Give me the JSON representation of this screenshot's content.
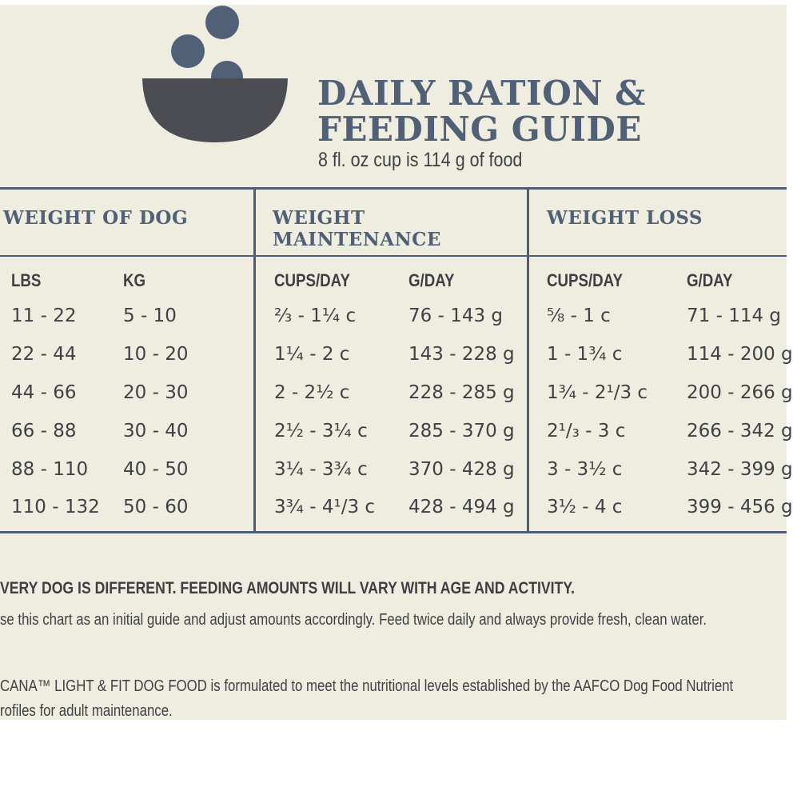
{
  "colors": {
    "background": "#efeddf",
    "title": "#4f6077",
    "rule": "#4e5d72",
    "text": "#3f4147",
    "bowl": "#4b4d53",
    "kibble": "#4f6077"
  },
  "logo": {
    "icon": "bowl-with-kibble-icon"
  },
  "title": {
    "line1": "DAILY RATION &",
    "line2": "FEEDING GUIDE"
  },
  "subtitle": "8 fl. oz cup is 114 g of food",
  "table": {
    "groups": {
      "weight_of_dog": "WEIGHT OF DOG",
      "maintenance_line1": "WEIGHT",
      "maintenance_line2": "MAINTENANCE",
      "weight_loss": "WEIGHT LOSS"
    },
    "columns": [
      "LBS",
      "KG",
      "CUPS/DAY",
      "G/DAY",
      "CUPS/DAY",
      "G/DAY"
    ],
    "rows": [
      [
        "11 - 22",
        "5 - 10",
        "²⁄₃ - 1¼ c",
        "76 - 143 g",
        "⁵⁄₈ - 1 c",
        "71 - 114 g"
      ],
      [
        "22 - 44",
        "10 - 20",
        "1¼ - 2 c",
        "143 - 228 g",
        "1 - 1¾ c",
        "114 - 200 g"
      ],
      [
        "44 - 66",
        "20 - 30",
        "2 - 2½ c",
        "228 - 285 g",
        "1¾ - 2¹/3 c",
        "200 - 266 g"
      ],
      [
        "66 - 88",
        "30 - 40",
        "2½ - 3¼ c",
        "285 - 370 g",
        "2¹/₃ - 3 c",
        "266 - 342 g"
      ],
      [
        "88 - 110",
        "40 - 50",
        "3¼ - 3¾ c",
        "370 - 428 g",
        "3 - 3½ c",
        "342 - 399 g"
      ],
      [
        "110 - 132",
        "50 - 60",
        "3¾ - 4¹/3 c",
        "428 - 494 g",
        "3½ - 4 c",
        "399 - 456 g"
      ]
    ]
  },
  "notes": {
    "headline": "VERY DOG IS DIFFERENT. FEEDING AMOUNTS WILL VARY WITH AGE AND ACTIVITY.",
    "line1": "se this chart as an initial guide and adjust amounts accordingly. Feed twice daily and always provide fresh, clean water.",
    "line2": "CANA™ LIGHT & FIT DOG FOOD is formulated to meet the nutritional levels established by the AAFCO Dog Food Nutrient",
    "line3": "rofiles for adult maintenance."
  }
}
